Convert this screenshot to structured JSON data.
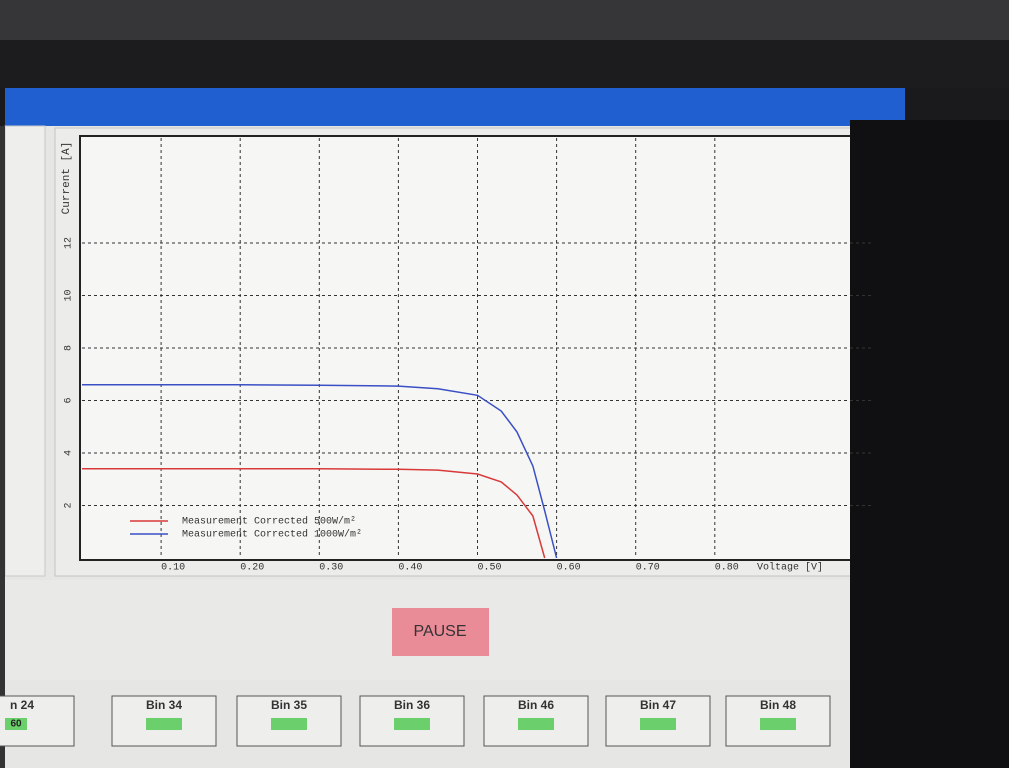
{
  "chart_data": {
    "type": "line",
    "x_label": "Voltage [V]",
    "y_label": "Current [A]",
    "x": [
      0,
      0.1,
      0.2,
      0.3,
      0.4,
      0.45,
      0.5,
      0.53,
      0.55,
      0.57,
      0.585,
      0.6
    ],
    "xlim": [
      0,
      1.0
    ],
    "xticks": [
      {
        "value": 0.1,
        "label": "0.10"
      },
      {
        "value": 0.2,
        "label": "0.20"
      },
      {
        "value": 0.3,
        "label": "0.30"
      },
      {
        "value": 0.4,
        "label": "0.40"
      },
      {
        "value": 0.5,
        "label": "0.50"
      },
      {
        "value": 0.6,
        "label": "0.60"
      },
      {
        "value": 0.7,
        "label": "0.70"
      },
      {
        "value": 0.8,
        "label": "0.80"
      }
    ],
    "ylim": [
      0,
      16
    ],
    "yticks": [
      2,
      4,
      6,
      8,
      10,
      12
    ],
    "grid": true,
    "legend": "lower left",
    "series": [
      {
        "name": "Measurement Corrected 500W/m²",
        "color": "#d83a3a",
        "values": [
          3.4,
          3.4,
          3.4,
          3.4,
          3.38,
          3.35,
          3.2,
          2.9,
          2.4,
          1.6,
          0,
          null
        ]
      },
      {
        "name": "Measurement Corrected 1000W/m²",
        "color": "#3a4fc4",
        "values": [
          6.6,
          6.6,
          6.6,
          6.58,
          6.55,
          6.45,
          6.2,
          5.6,
          4.8,
          3.5,
          1.8,
          0
        ]
      }
    ]
  },
  "controls": {
    "button": "PAUSE",
    "bins": [
      {
        "label": "n 24",
        "value": "60"
      },
      {
        "label": "Bin 34"
      },
      {
        "label": "Bin 35"
      },
      {
        "label": "Bin 36"
      },
      {
        "label": "Bin 46"
      },
      {
        "label": "Bin 47"
      },
      {
        "label": "Bin 48"
      }
    ]
  }
}
